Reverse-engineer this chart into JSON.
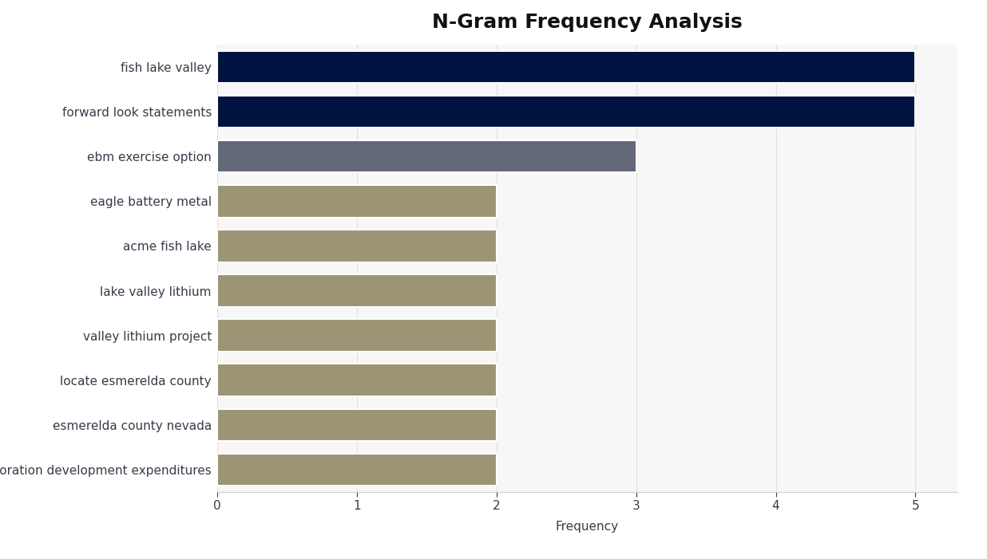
{
  "title": "N-Gram Frequency Analysis",
  "xlabel": "Frequency",
  "categories": [
    "exploration development expenditures",
    "esmerelda county nevada",
    "locate esmerelda county",
    "valley lithium project",
    "lake valley lithium",
    "acme fish lake",
    "eagle battery metal",
    "ebm exercise option",
    "forward look statements",
    "fish lake valley"
  ],
  "values": [
    2,
    2,
    2,
    2,
    2,
    2,
    2,
    3,
    5,
    5
  ],
  "bar_colors": [
    "#9c9474",
    "#9c9474",
    "#9c9474",
    "#9c9474",
    "#9c9474",
    "#9c9474",
    "#9c9474",
    "#626878",
    "#001240",
    "#001240"
  ],
  "plot_bg_color": "#f7f7f7",
  "fig_bg_color": "#ffffff",
  "title_fontsize": 18,
  "label_fontsize": 11,
  "tick_fontsize": 11,
  "xlim": [
    0,
    5.3
  ],
  "xticks": [
    0,
    1,
    2,
    3,
    4,
    5
  ],
  "bar_height": 0.72,
  "label_color": "#3a3a4a",
  "grid_color": "#e0e0e0"
}
